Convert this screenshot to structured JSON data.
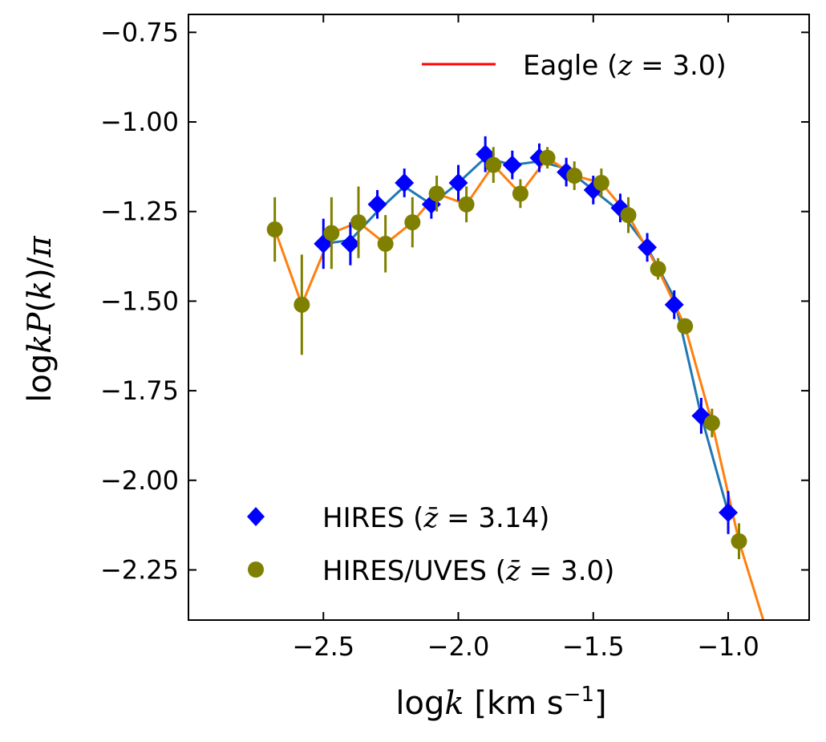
{
  "chart_data": {
    "type": "scatter",
    "xlabel": "logk [km s^-1]",
    "ylabel": "logkP(k)/π",
    "xlim": [
      -3.0,
      -0.7
    ],
    "ylim": [
      -2.39,
      -0.7
    ],
    "grid": false,
    "x_ticks": [
      -2.5,
      -2.0,
      -1.5,
      -1.0
    ],
    "x_tick_labels": [
      "−2.5",
      "−2.0",
      "−1.5",
      "−1.0"
    ],
    "y_ticks": [
      -0.75,
      -1.0,
      -1.25,
      -1.5,
      -1.75,
      -2.0,
      -2.25
    ],
    "y_tick_labels": [
      "−0.75",
      "−1.00",
      "−1.25",
      "−1.50",
      "−1.75",
      "−2.00",
      "−2.25"
    ],
    "legend_top": {
      "placement": "top-right",
      "entries": [
        {
          "label": "Eagle (z = 3.0)",
          "color": "#ff0000",
          "marker": "line"
        }
      ]
    },
    "legend_bottom": {
      "placement": "lower-left",
      "entries": [
        {
          "label": "HIRES (z̄ = 3.14)",
          "color": "#0000ff",
          "marker": "diamond"
        },
        {
          "label": "HIRES/UVES (z̄ = 3.0)",
          "color": "#808000",
          "marker": "circle"
        }
      ]
    },
    "series": [
      {
        "name": "HIRES (z̄ = 3.14)",
        "kind": "points",
        "marker": "diamond",
        "color": "#0000ff",
        "x": [
          -2.5,
          -2.4,
          -2.3,
          -2.2,
          -2.1,
          -2.0,
          -1.9,
          -1.8,
          -1.7,
          -1.6,
          -1.5,
          -1.4,
          -1.3,
          -1.2,
          -1.1,
          -1.0
        ],
        "y": [
          -1.34,
          -1.34,
          -1.23,
          -1.17,
          -1.23,
          -1.17,
          -1.09,
          -1.12,
          -1.1,
          -1.14,
          -1.19,
          -1.24,
          -1.35,
          -1.51,
          -1.82,
          -2.09
        ],
        "yerr": [
          0.07,
          0.06,
          0.04,
          0.04,
          0.04,
          0.05,
          0.05,
          0.04,
          0.04,
          0.04,
          0.04,
          0.04,
          0.04,
          0.04,
          0.05,
          0.06
        ]
      },
      {
        "name": "HIRES/UVES (z̄ = 3.0)",
        "kind": "points",
        "marker": "circle",
        "color": "#808000",
        "x": [
          -2.68,
          -2.58,
          -2.47,
          -2.37,
          -2.27,
          -2.17,
          -2.08,
          -1.97,
          -1.87,
          -1.77,
          -1.67,
          -1.57,
          -1.47,
          -1.37,
          -1.26,
          -1.16,
          -1.06,
          -0.96
        ],
        "y": [
          -1.3,
          -1.51,
          -1.31,
          -1.28,
          -1.34,
          -1.28,
          -1.2,
          -1.23,
          -1.12,
          -1.2,
          -1.1,
          -1.15,
          -1.17,
          -1.26,
          -1.41,
          -1.57,
          -1.84,
          -2.17
        ],
        "yerr": [
          0.09,
          0.14,
          0.1,
          0.1,
          0.08,
          0.07,
          0.05,
          0.05,
          0.05,
          0.04,
          0.03,
          0.04,
          0.04,
          0.05,
          0.03,
          0.02,
          0.04,
          0.05
        ]
      },
      {
        "name": "",
        "kind": "line",
        "color": "#1f77b4",
        "x": [
          -2.5,
          -2.4,
          -2.3,
          -2.2,
          -2.1,
          -2.0,
          -1.9,
          -1.8,
          -1.7,
          -1.6,
          -1.5,
          -1.4,
          -1.3,
          -1.2,
          -1.1,
          -1.0
        ],
        "y": [
          -1.34,
          -1.33,
          -1.25,
          -1.18,
          -1.23,
          -1.17,
          -1.1,
          -1.12,
          -1.11,
          -1.13,
          -1.19,
          -1.25,
          -1.35,
          -1.49,
          -1.82,
          -2.09
        ]
      },
      {
        "name": "",
        "kind": "line",
        "color": "#ff7f0e",
        "x": [
          -2.68,
          -2.58,
          -2.47,
          -2.37,
          -2.27,
          -2.17,
          -2.08,
          -1.97,
          -1.87,
          -1.77,
          -1.67,
          -1.57,
          -1.47,
          -1.37,
          -1.26,
          -1.16,
          -1.06,
          -0.96,
          -0.87
        ],
        "y": [
          -1.3,
          -1.51,
          -1.31,
          -1.28,
          -1.34,
          -1.28,
          -1.2,
          -1.23,
          -1.12,
          -1.2,
          -1.1,
          -1.15,
          -1.17,
          -1.26,
          -1.41,
          -1.57,
          -1.84,
          -2.17,
          -2.39
        ]
      }
    ]
  }
}
